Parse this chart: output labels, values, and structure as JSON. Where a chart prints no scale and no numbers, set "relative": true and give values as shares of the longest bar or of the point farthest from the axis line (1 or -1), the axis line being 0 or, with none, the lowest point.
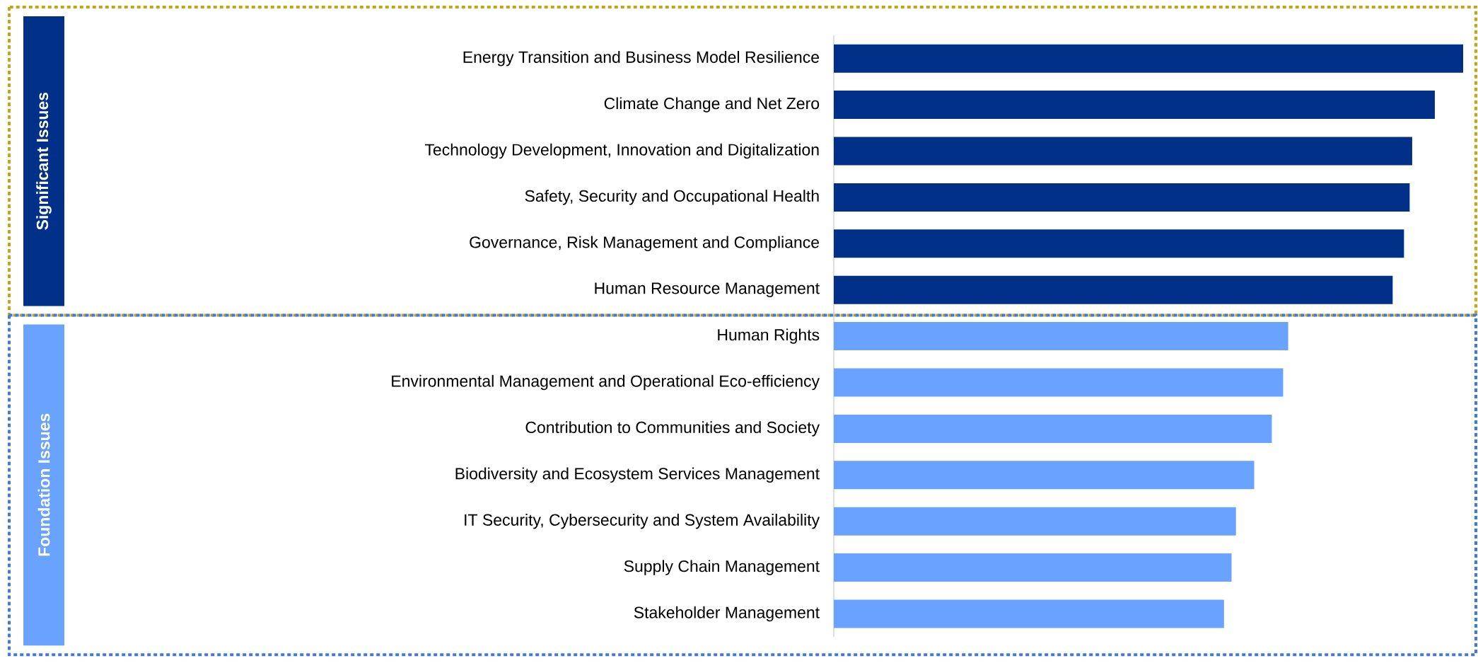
{
  "chart_data": {
    "type": "bar",
    "orientation": "horizontal",
    "relative": true,
    "categories": [
      "Energy Transition and Business Model Resilience",
      "Climate Change and Net Zero",
      "Technology Development, Innovation and Digitalization",
      "Safety, Security and Occupational Health",
      "Governance, Risk Management and Compliance",
      "Human Resource Management",
      "Human Rights",
      "Environmental Management and Operational Eco-efficiency",
      "Contribution to Communities and Society",
      "Biodiversity and Ecosystem Services Management",
      "IT Security, Cybersecurity and System Availability",
      "Supply Chain Management",
      "Stakeholder Management"
    ],
    "values": [
      1,
      0.955,
      0.919,
      0.915,
      0.906,
      0.888,
      0.722,
      0.714,
      0.696,
      0.668,
      0.639,
      0.632,
      0.62
    ],
    "colors": [
      "#003087",
      "#003087",
      "#003087",
      "#003087",
      "#003087",
      "#003087",
      "#6aa3ff",
      "#6aa3ff",
      "#6aa3ff",
      "#6aa3ff",
      "#6aa3ff",
      "#6aa3ff",
      "#6aa3ff"
    ],
    "annotations": [
      "Significant Issues",
      "Foundation Issues"
    ]
  }
}
